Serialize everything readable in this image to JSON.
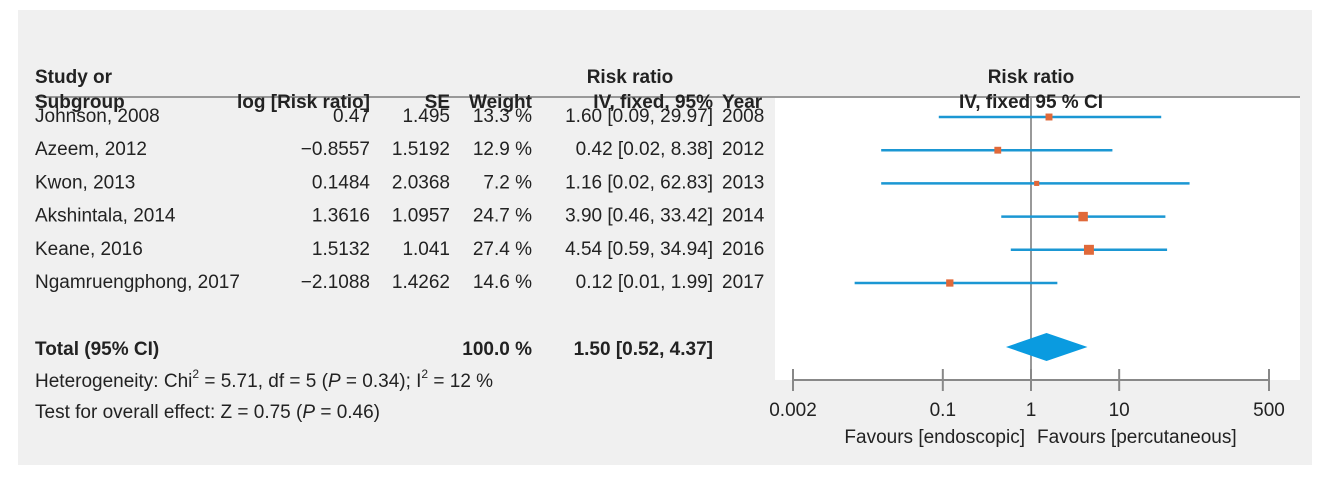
{
  "chart_data": {
    "type": "forest",
    "header": [
      [
        "Study or",
        "Subgroup"
      ],
      [
        "log [Risk ratio]"
      ],
      [
        "SE"
      ],
      [
        "Weight"
      ],
      [
        "Risk ratio",
        "IV, fixed, 95%"
      ],
      [
        "Year"
      ]
    ],
    "plot_header": [
      "Risk ratio",
      "IV, fixed 95 % CI"
    ],
    "studies": [
      "Johnson, 2008",
      "Azeem, 2012",
      "Kwon, 2013",
      "Akshintala, 2014",
      "Keane, 2016",
      "Ngamruengphong, 2017"
    ],
    "log_rr": [
      "0.47",
      "−0.8557",
      "0.1484",
      "1.3616",
      "1.5132",
      "−2.1088"
    ],
    "se": [
      "1.495",
      "1.5192",
      "2.0368",
      "1.0957",
      "1.041",
      "1.4262"
    ],
    "weights": [
      13.3,
      12.9,
      7.2,
      24.7,
      27.4,
      14.6
    ],
    "weight_labels": [
      "13.3 %",
      "12.9 %",
      "7.2 %",
      "24.7 %",
      "27.4 %",
      "14.6 %"
    ],
    "values": [
      1.6,
      0.42,
      1.16,
      3.9,
      4.54,
      0.12
    ],
    "ci_low": [
      0.09,
      0.02,
      0.02,
      0.46,
      0.59,
      0.01
    ],
    "ci_high": [
      29.97,
      8.38,
      62.83,
      33.42,
      34.94,
      1.99
    ],
    "value_labels": [
      "1.60 [0.09, 29.97]",
      "0.42 [0.02, 8.38]",
      "1.16 [0.02, 62.83]",
      "3.90 [0.46, 33.42]",
      "4.54 [0.59, 34.94]",
      "0.12 [0.01, 1.99]"
    ],
    "years": [
      "2008",
      "2012",
      "2013",
      "2014",
      "2016",
      "2017"
    ],
    "total": {
      "label": "Total (95% CI)",
      "weight": 100.0,
      "weight_label": "100.0 %",
      "value": 1.5,
      "ci": [
        0.52,
        4.37
      ],
      "value_label": "1.50 [0.52, 4.37]"
    },
    "heterogeneity": [
      "Heterogeneity: Chi",
      "2",
      " = 5.71, df = 5 (",
      "P",
      " = 0.34); I",
      "2",
      " = 12 %"
    ],
    "overall_effect": [
      "Test for overall effect: Z = 0.75 (",
      "P",
      " = 0.46)"
    ],
    "xlim": [
      0.002,
      500
    ],
    "xticks": [
      0.002,
      0.1,
      1,
      10,
      500
    ],
    "log_x": true,
    "reference": 1,
    "xlabels": [
      "Favours [endoscopic]",
      "Favours [percutaneous]"
    ],
    "marker_color": "#e0693a",
    "line_color": "#1b97d3",
    "diamond_color": "#0a9be0"
  }
}
